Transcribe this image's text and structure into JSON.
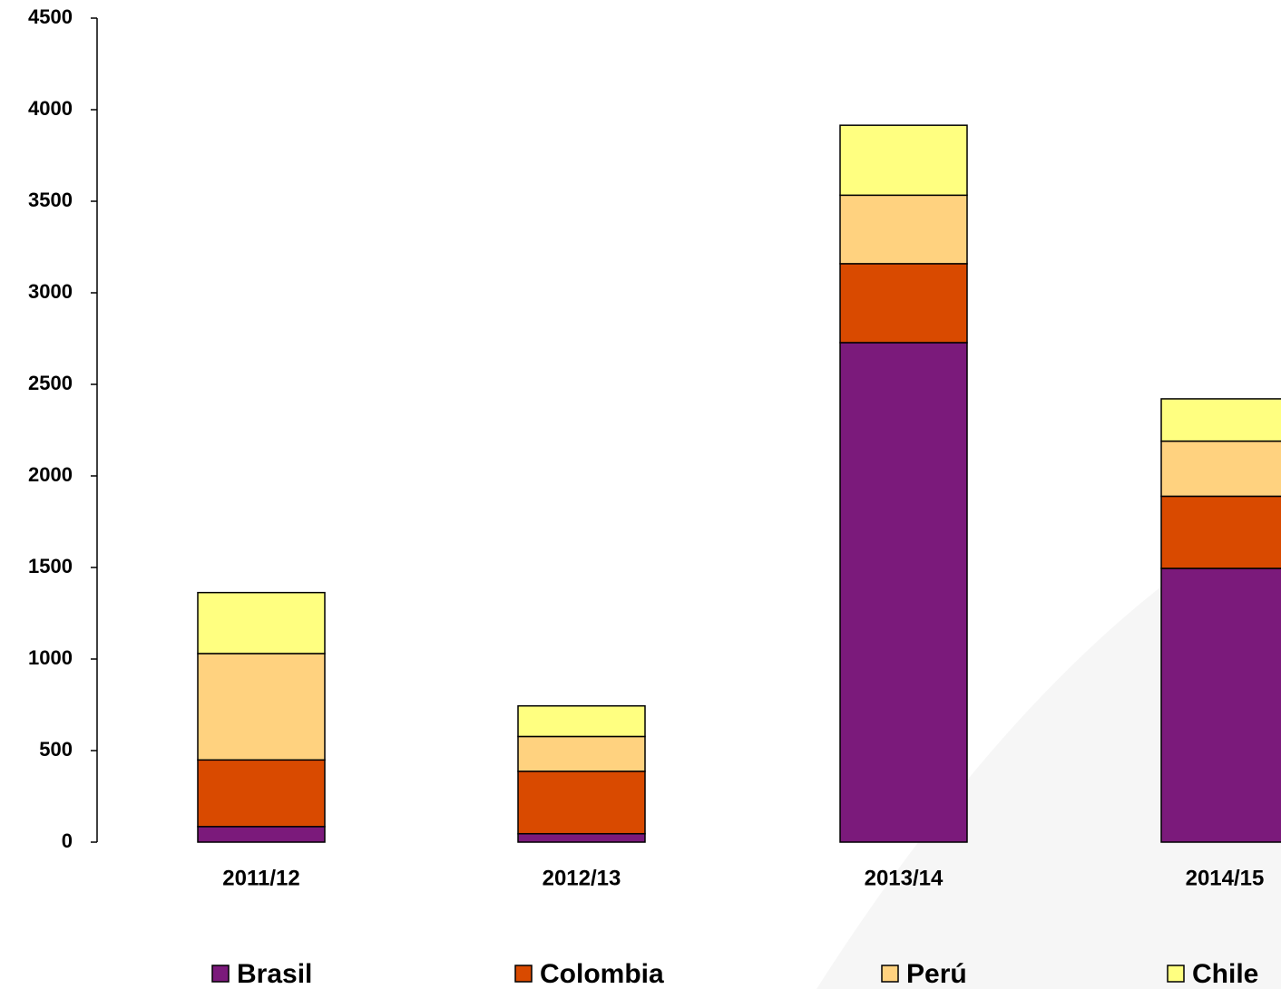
{
  "chart_data": {
    "type": "stacked_bar",
    "categories": [
      "2011/12",
      "2012/13",
      "2013/14",
      "2014/15"
    ],
    "series": [
      {
        "name": "Brasil",
        "color": "#7b1a7b",
        "values": [
          85,
          46,
          2728,
          1495
        ],
        "value_labels": [
          "85",
          "46",
          "2.728",
          "1.495"
        ]
      },
      {
        "name": "Colombia",
        "color": "#d94a00",
        "values": [
          364,
          341,
          431,
          394
        ]
      },
      {
        "name": "Perú",
        "color": "#ffd27f",
        "values": [
          581,
          190,
          374,
          301
        ]
      },
      {
        "name": "Chile",
        "color": "#ffff80",
        "values": [
          333,
          167,
          382,
          231
        ]
      }
    ],
    "ylim": [
      0,
      4500
    ],
    "yticks": [
      0,
      500,
      1000,
      1500,
      2000,
      2500,
      3000,
      3500,
      4000,
      4500
    ],
    "grid": false,
    "legend": "bottom"
  }
}
